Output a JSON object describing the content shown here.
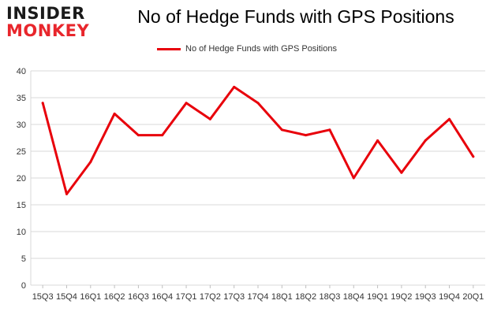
{
  "logo": {
    "line1": "INSIDER",
    "line2": "MONKEY"
  },
  "chart_data": {
    "type": "line",
    "title": "No of Hedge Funds with GPS Positions",
    "xlabel": "",
    "ylabel": "",
    "categories": [
      "15Q3",
      "15Q4",
      "16Q1",
      "16Q2",
      "16Q3",
      "16Q4",
      "17Q1",
      "17Q2",
      "17Q3",
      "17Q4",
      "18Q1",
      "18Q2",
      "18Q3",
      "18Q4",
      "19Q1",
      "19Q2",
      "19Q3",
      "19Q4",
      "20Q1"
    ],
    "series": [
      {
        "name": "No of Hedge Funds with GPS Positions",
        "values": [
          34,
          17,
          23,
          32,
          28,
          28,
          34,
          31,
          37,
          34,
          29,
          28,
          29,
          20,
          27,
          21,
          27,
          31,
          24
        ],
        "color": "#e8000b"
      }
    ],
    "ylim": [
      0,
      40
    ],
    "yticks": [
      0,
      5,
      10,
      15,
      20,
      25,
      30,
      35,
      40
    ],
    "grid": true,
    "legend": "top-center"
  }
}
